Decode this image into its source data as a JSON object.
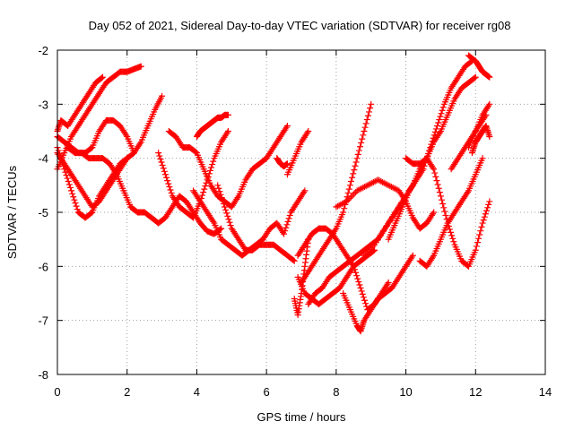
{
  "chart_data": {
    "type": "scatter",
    "title": "Day 052 of 2021, Sidereal Day-to-day VTEC variation (SDTVAR) for receiver rg08",
    "xlabel": "GPS time / hours",
    "ylabel": "SDTVAR / TECUs",
    "xlim": [
      0,
      14
    ],
    "ylim": [
      -8,
      -2
    ],
    "xticks": [
      0,
      2,
      4,
      6,
      8,
      10,
      12,
      14
    ],
    "yticks": [
      -8,
      -7,
      -6,
      -5,
      -4,
      -3,
      -2
    ],
    "grid": true,
    "marker": "+",
    "color": "#ff0000",
    "series": [
      {
        "x": [
          0.0,
          0.1,
          0.3,
          0.5,
          0.7,
          0.9,
          1.1,
          1.3
        ],
        "y": [
          -3.5,
          -3.3,
          -3.4,
          -3.2,
          -3.0,
          -2.8,
          -2.6,
          -2.5
        ]
      },
      {
        "x": [
          0.0,
          0.2,
          0.4,
          0.6,
          0.8,
          1.0,
          1.2,
          1.4,
          1.6,
          1.8,
          2.0,
          2.2,
          2.4
        ],
        "y": [
          -4.2,
          -3.9,
          -3.6,
          -3.4,
          -3.2,
          -3.0,
          -2.8,
          -2.6,
          -2.5,
          -2.4,
          -2.4,
          -2.35,
          -2.3
        ]
      },
      {
        "x": [
          0.0,
          0.2,
          0.4,
          0.6,
          0.8,
          1.0,
          1.2,
          1.4,
          1.6,
          1.8,
          2.0
        ],
        "y": [
          -3.9,
          -4.1,
          -4.3,
          -4.5,
          -4.7,
          -4.9,
          -4.8,
          -4.6,
          -4.4,
          -4.2,
          -4.0
        ]
      },
      {
        "x": [
          0.0,
          0.2,
          0.4,
          0.6,
          0.8,
          1.0,
          1.2,
          1.4,
          1.6,
          1.8,
          2.0,
          2.2
        ],
        "y": [
          -3.6,
          -3.7,
          -3.8,
          -3.9,
          -3.9,
          -3.8,
          -3.5,
          -3.3,
          -3.3,
          -3.4,
          -3.6,
          -3.9
        ]
      },
      {
        "x": [
          0.0,
          0.2,
          0.4,
          0.6,
          0.8,
          1.0,
          1.2,
          1.4,
          1.6,
          1.8,
          2.0,
          2.2,
          2.4,
          2.6,
          2.8,
          3.0
        ],
        "y": [
          -3.8,
          -4.2,
          -4.6,
          -5.0,
          -5.1,
          -5.0,
          -4.7,
          -4.5,
          -4.3,
          -4.1,
          -4.0,
          -3.9,
          -3.7,
          -3.4,
          -3.1,
          -2.85
        ]
      },
      {
        "x": [
          0.3,
          0.5,
          0.7,
          0.9,
          1.1,
          1.3,
          1.5,
          1.7,
          1.9,
          2.1,
          2.3,
          2.5,
          2.7,
          2.9,
          3.1,
          3.3,
          3.5,
          3.7,
          3.9,
          4.1,
          4.3,
          4.5,
          4.7
        ],
        "y": [
          -3.8,
          -3.9,
          -3.9,
          -4.0,
          -4.0,
          -4.0,
          -4.1,
          -4.3,
          -4.6,
          -4.9,
          -5.0,
          -5.0,
          -5.1,
          -5.2,
          -5.1,
          -4.9,
          -4.7,
          -4.8,
          -5.0,
          -5.2,
          -5.35,
          -5.4,
          -5.3
        ]
      },
      {
        "x": [
          2.9,
          3.1,
          3.3,
          3.5,
          3.7,
          3.9,
          4.1,
          4.3,
          4.5,
          4.7,
          4.9
        ],
        "y": [
          -3.9,
          -4.3,
          -4.7,
          -4.9,
          -5.0,
          -5.1,
          -4.8,
          -4.4,
          -4.0,
          -3.7,
          -3.5
        ]
      },
      {
        "x": [
          3.2,
          3.4,
          3.6,
          3.8,
          4.0,
          4.2,
          4.4,
          4.6,
          4.8,
          5.0,
          5.2,
          5.4,
          5.6,
          5.8,
          6.0,
          6.2,
          6.4,
          6.6
        ],
        "y": [
          -3.5,
          -3.6,
          -3.8,
          -3.8,
          -3.9,
          -4.2,
          -4.5,
          -4.7,
          -4.8,
          -4.9,
          -4.7,
          -4.4,
          -4.2,
          -4.1,
          -4.0,
          -3.8,
          -3.6,
          -3.4
        ]
      },
      {
        "x": [
          3.9,
          4.1,
          4.3,
          4.5,
          4.7,
          4.9,
          5.1,
          5.3,
          5.5,
          5.7,
          5.9,
          6.1,
          6.3,
          6.5,
          6.7,
          6.9,
          7.1
        ],
        "y": [
          -4.6,
          -4.8,
          -5.0,
          -5.2,
          -5.5,
          -5.6,
          -5.7,
          -5.8,
          -5.7,
          -5.6,
          -5.5,
          -5.3,
          -5.2,
          -5.4,
          -5.0,
          -4.8,
          -4.6
        ]
      },
      {
        "x": [
          4.0,
          4.1,
          4.2,
          4.3,
          4.4,
          4.5,
          4.6,
          4.7,
          4.8,
          4.9
        ],
        "y": [
          -3.6,
          -3.5,
          -3.45,
          -3.4,
          -3.35,
          -3.3,
          -3.25,
          -3.25,
          -3.2,
          -3.2
        ]
      },
      {
        "x": [
          4.6,
          4.8,
          5.0,
          5.2,
          5.4,
          5.6,
          5.8,
          6.0,
          6.2,
          6.4,
          6.6,
          6.8
        ],
        "y": [
          -4.5,
          -4.9,
          -5.3,
          -5.5,
          -5.7,
          -5.7,
          -5.6,
          -5.6,
          -5.6,
          -5.7,
          -5.8,
          -5.9
        ]
      },
      {
        "x": [
          6.3,
          6.4,
          6.5,
          6.6
        ],
        "y": [
          -4.0,
          -4.1,
          -4.15,
          -4.1
        ]
      },
      {
        "x": [
          6.6,
          6.8,
          7.0,
          7.2
        ],
        "y": [
          -4.3,
          -4.0,
          -3.7,
          -3.5
        ]
      },
      {
        "x": [
          6.8,
          6.9,
          7.0,
          7.1,
          7.2
        ],
        "y": [
          -6.6,
          -6.9,
          -6.5,
          -6.0,
          -5.5
        ]
      },
      {
        "x": [
          6.9,
          7.1,
          7.3,
          7.5,
          7.7,
          7.9,
          8.1,
          8.3,
          8.5,
          8.7,
          8.9,
          9.1
        ],
        "y": [
          -6.2,
          -6.5,
          -6.6,
          -6.7,
          -6.6,
          -6.5,
          -6.4,
          -6.2,
          -6.0,
          -5.9,
          -5.8,
          -5.7
        ]
      },
      {
        "x": [
          6.9,
          7.1,
          7.3,
          7.5,
          7.7,
          7.9,
          8.1,
          8.3,
          8.5,
          8.7,
          8.9,
          9.1,
          9.3,
          9.5
        ],
        "y": [
          -5.8,
          -5.6,
          -5.4,
          -5.3,
          -5.3,
          -5.4,
          -5.6,
          -5.8,
          -6.0,
          -6.4,
          -6.8,
          -6.7,
          -6.5,
          -6.3
        ]
      },
      {
        "x": [
          7.0,
          7.2,
          7.4,
          7.6,
          7.8,
          8.0,
          8.2,
          8.4,
          8.6,
          8.8,
          9.0
        ],
        "y": [
          -6.3,
          -6.1,
          -5.9,
          -5.7,
          -5.5,
          -5.3,
          -5.0,
          -4.5,
          -4.0,
          -3.5,
          -3.0
        ]
      },
      {
        "x": [
          7.2,
          7.4,
          7.6,
          7.8,
          8.0,
          8.2,
          8.4,
          8.6,
          8.8,
          9.0,
          9.2,
          9.4,
          9.6,
          9.8,
          10.0
        ],
        "y": [
          -6.7,
          -6.5,
          -6.4,
          -6.2,
          -6.1,
          -6.0,
          -5.9,
          -5.8,
          -5.7,
          -5.6,
          -5.5,
          -5.3,
          -5.1,
          -4.9,
          -4.7
        ]
      },
      {
        "x": [
          8.2,
          8.4,
          8.6,
          8.7,
          8.8,
          9.0,
          9.2,
          9.4,
          9.6,
          9.8,
          10.0,
          10.2
        ],
        "y": [
          -6.5,
          -6.8,
          -7.1,
          -7.2,
          -7.0,
          -6.8,
          -6.6,
          -6.5,
          -6.4,
          -6.2,
          -6.0,
          -5.8
        ]
      },
      {
        "x": [
          8.0,
          8.3,
          8.6,
          8.9,
          9.2,
          9.5,
          9.8,
          10.0,
          10.2,
          10.4,
          10.6,
          10.8
        ],
        "y": [
          -4.9,
          -4.8,
          -4.6,
          -4.5,
          -4.4,
          -4.5,
          -4.6,
          -4.8,
          -5.1,
          -5.3,
          -5.2,
          -5.0
        ]
      },
      {
        "x": [
          8.8,
          9.1,
          9.4,
          9.7,
          10.0,
          10.2,
          10.4,
          10.6,
          10.8,
          11.0,
          11.2,
          11.4,
          11.6,
          11.8,
          12.0
        ],
        "y": [
          -5.8,
          -5.6,
          -5.3,
          -5.0,
          -4.7,
          -4.5,
          -4.2,
          -4.0,
          -3.7,
          -3.5,
          -3.2,
          -2.9,
          -2.7,
          -2.6,
          -2.5
        ]
      },
      {
        "x": [
          9.5,
          9.7,
          9.9,
          10.1,
          10.3,
          10.5,
          10.7,
          10.9,
          11.1,
          11.3,
          11.5,
          11.7,
          11.9
        ],
        "y": [
          -5.5,
          -5.2,
          -4.9,
          -4.6,
          -4.4,
          -4.2,
          -3.8,
          -3.4,
          -3.0,
          -2.7,
          -2.5,
          -2.3,
          -2.2
        ]
      },
      {
        "x": [
          10.0,
          10.2,
          10.4,
          10.6,
          10.8,
          11.0,
          11.2,
          11.4,
          11.6,
          11.8,
          12.0,
          12.2,
          12.4
        ],
        "y": [
          -4.0,
          -4.1,
          -4.1,
          -4.0,
          -4.2,
          -4.7,
          -5.2,
          -5.6,
          -5.9,
          -6.0,
          -5.7,
          -5.2,
          -4.8
        ]
      },
      {
        "x": [
          10.4,
          10.6,
          10.8,
          11.0,
          11.2,
          11.4,
          11.6,
          11.8,
          12.0,
          12.2
        ],
        "y": [
          -5.9,
          -6.0,
          -5.8,
          -5.5,
          -5.2,
          -5.0,
          -4.8,
          -4.6,
          -4.3,
          -4.0
        ]
      },
      {
        "x": [
          11.3,
          11.5,
          11.7,
          11.9,
          12.1,
          12.3
        ],
        "y": [
          -4.2,
          -4.0,
          -3.8,
          -3.6,
          -3.4,
          -3.2
        ]
      },
      {
        "x": [
          11.8,
          12.0,
          12.1,
          12.2,
          12.3,
          12.4
        ],
        "y": [
          -2.1,
          -2.2,
          -2.3,
          -2.4,
          -2.45,
          -2.5
        ]
      },
      {
        "x": [
          11.8,
          12.0,
          12.2,
          12.4
        ],
        "y": [
          -3.8,
          -3.5,
          -3.2,
          -3.0
        ]
      },
      {
        "x": [
          11.9,
          12.0,
          12.1,
          12.2,
          12.3,
          12.4
        ],
        "y": [
          -3.9,
          -3.7,
          -3.6,
          -3.5,
          -3.4,
          -3.6
        ]
      }
    ]
  }
}
